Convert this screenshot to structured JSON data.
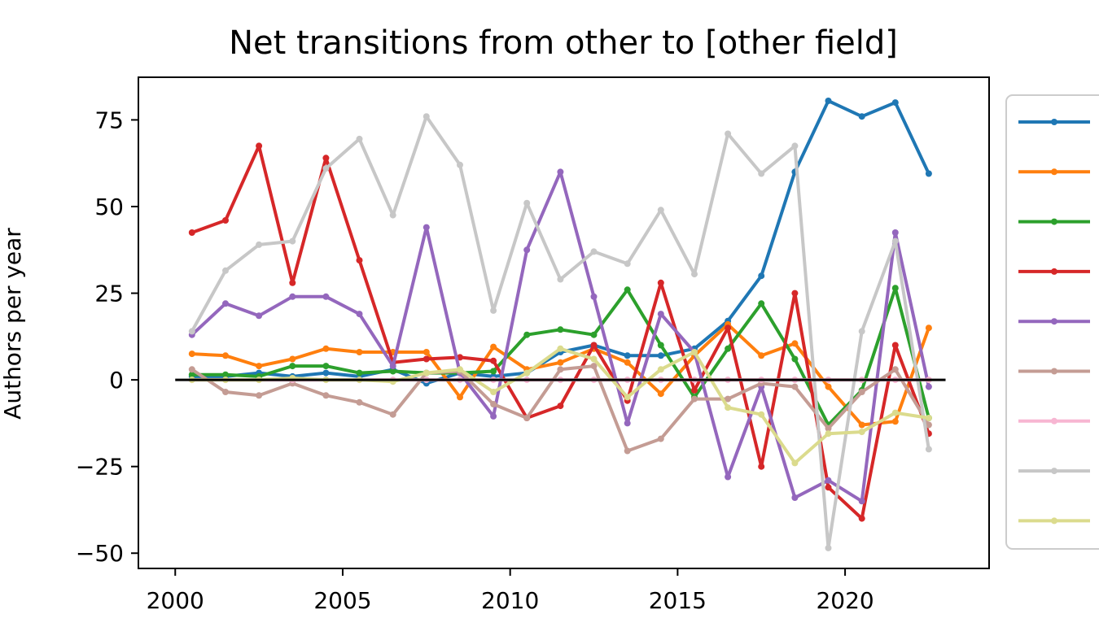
{
  "chart_data": {
    "type": "line",
    "title": "Net transitions from other to [other field]",
    "xlabel": "",
    "ylabel": "Authors per year",
    "xlim": [
      1998.9,
      2024.3
    ],
    "ylim": [
      -54.4,
      87.3
    ],
    "xticks": [
      2000,
      2005,
      2010,
      2015,
      2020
    ],
    "yticks": [
      -50,
      -25,
      0,
      25,
      50,
      75
    ],
    "grid": false,
    "legend": {
      "position": "right, outside plot",
      "labels_visible": false
    },
    "reference_line": {
      "y": 0,
      "x": [
        2000,
        2023
      ],
      "color": "#000000"
    },
    "x": [
      2000.5,
      2001.5,
      2002.5,
      2003.5,
      2004.5,
      2005.5,
      2006.5,
      2007.5,
      2008.5,
      2009.5,
      2010.5,
      2011.5,
      2012.5,
      2013.5,
      2014.5,
      2015.5,
      2016.5,
      2017.5,
      2018.5,
      2019.5,
      2020.5,
      2021.5,
      2022.5
    ],
    "series": [
      {
        "color": "#1f77b4",
        "values": [
          1,
          1,
          2,
          1,
          2,
          1,
          3,
          -1,
          2,
          1,
          2,
          8,
          10,
          7,
          7,
          9,
          17,
          30,
          60,
          80.5,
          76,
          80,
          59.5
        ]
      },
      {
        "color": "#ff7f0e",
        "values": [
          7.5,
          7,
          4,
          6,
          9,
          8,
          8,
          8,
          -5,
          9.5,
          3,
          5,
          9,
          5,
          -4,
          7,
          16,
          7,
          10.5,
          -2,
          -13,
          -12,
          15
        ]
      },
      {
        "color": "#2ca02c",
        "values": [
          1.5,
          1.5,
          1,
          4,
          4,
          2,
          2.5,
          2,
          2,
          2.5,
          13,
          14.5,
          13,
          26,
          10,
          -5,
          9,
          22,
          6,
          -13,
          -3,
          26.5,
          -11
        ]
      },
      {
        "color": "#d62728",
        "values": [
          42.5,
          46,
          67.5,
          28,
          64,
          34.5,
          5,
          6,
          6.5,
          5.5,
          -11,
          -7.5,
          10,
          -6,
          28,
          -3,
          15,
          -25,
          25,
          -31,
          -40,
          10,
          -15.5
        ]
      },
      {
        "color": "#9467bd",
        "values": [
          13,
          22,
          18.5,
          24,
          24,
          19,
          4,
          44,
          2,
          -10.5,
          37.5,
          60,
          24,
          -12.5,
          19,
          8,
          -28,
          -2,
          -34,
          -29,
          -35,
          42.5,
          -2
        ]
      },
      {
        "color": "#c49c94",
        "values": [
          3,
          -3.5,
          -4.5,
          -1,
          -4.5,
          -6.5,
          -10,
          2,
          2.5,
          -7,
          -11,
          3,
          4,
          -20.5,
          -17,
          -5.5,
          -5.5,
          -1,
          -2,
          -14,
          -3.5,
          3,
          -13
        ]
      },
      {
        "color": "#f7b6d2",
        "values": [
          0,
          0,
          0,
          0,
          0,
          0,
          0,
          0,
          0,
          0,
          0,
          0,
          0,
          0,
          0,
          0,
          0,
          0,
          0,
          0,
          0,
          0,
          0
        ]
      },
      {
        "color": "#c7c7c7",
        "values": [
          14,
          31.5,
          39,
          40,
          61,
          69.5,
          47.5,
          76,
          62,
          20,
          51,
          29,
          37,
          33.5,
          49,
          30.5,
          71,
          59.5,
          67.5,
          -48.5,
          14,
          40,
          -20
        ]
      },
      {
        "color": "#dbdb8d",
        "values": [
          0,
          0,
          0,
          0.5,
          0,
          0,
          -0.5,
          2,
          3,
          -3.5,
          2,
          9,
          6,
          -5,
          3,
          8,
          -8,
          -10,
          -24,
          -15.5,
          -15,
          -9.5,
          -11
        ]
      }
    ]
  }
}
